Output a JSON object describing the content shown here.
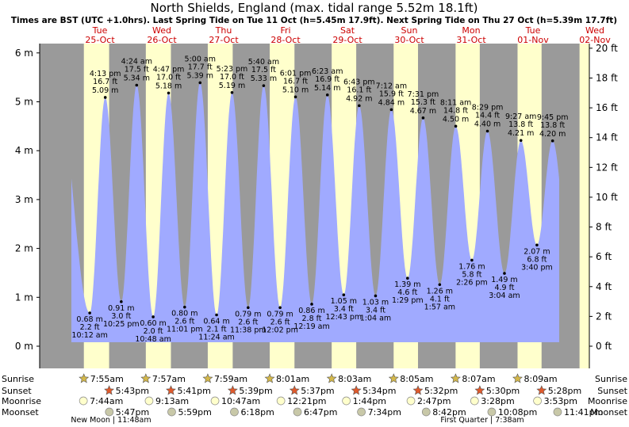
{
  "chart_data": {
    "type": "area",
    "title": "North Shields, England (max. tidal range 5.52m 18.1ft)",
    "subtitle": "Times are BST (UTC +1.0hrs). Last Spring Tide on Tue 11 Oct (h=5.45m 17.9ft). Next Spring Tide on Thu 27 Oct (h=5.39m 17.7ft)",
    "y_left": {
      "ylim": [
        -0.5,
        6.2
      ],
      "ticks": [
        "0 m",
        "1 m",
        "2 m",
        "3 m",
        "4 m",
        "5 m",
        "6 m"
      ]
    },
    "y_right": {
      "ticks": [
        "0 ft",
        "2 ft",
        "4 ft",
        "6 ft",
        "8 ft",
        "10 ft",
        "12 ft",
        "14 ft",
        "16 ft",
        "18 ft",
        "20 ft"
      ]
    },
    "days": [
      {
        "name": "Tue",
        "date": "25-Oct"
      },
      {
        "name": "Wed",
        "date": "26-Oct"
      },
      {
        "name": "Thu",
        "date": "27-Oct"
      },
      {
        "name": "Fri",
        "date": "28-Oct"
      },
      {
        "name": "Sat",
        "date": "29-Oct"
      },
      {
        "name": "Sun",
        "date": "30-Oct"
      },
      {
        "name": "Mon",
        "date": "31-Oct"
      },
      {
        "name": "Tue",
        "date": "01-Nov"
      },
      {
        "name": "Wed",
        "date": "02-Nov"
      }
    ],
    "daylight": [
      {
        "sunrise": "7:55am",
        "sunset": "5:43pm"
      },
      {
        "sunrise": "7:57am",
        "sunset": "5:41pm"
      },
      {
        "sunrise": "7:59am",
        "sunset": "5:39pm"
      },
      {
        "sunrise": "8:01am",
        "sunset": "5:37pm"
      },
      {
        "sunrise": "8:03am",
        "sunset": "5:34pm"
      },
      {
        "sunrise": "8:05am",
        "sunset": "5:32pm"
      },
      {
        "sunrise": "8:07am",
        "sunset": "5:30pm"
      },
      {
        "sunrise": "8:09am",
        "sunset": "5:28pm"
      }
    ],
    "tides": [
      {
        "day": 0,
        "time": "10:12 am",
        "m": 0.68,
        "ft": "2.2 ft",
        "h": "0.68 m",
        "type": "low"
      },
      {
        "day": 0,
        "time": "4:13 pm",
        "m": 5.09,
        "ft": "16.7 ft",
        "h": "5.09 m",
        "type": "high"
      },
      {
        "day": 0,
        "time": "10:25 pm",
        "m": 0.91,
        "ft": "3.0 ft",
        "h": "0.91 m",
        "type": "low"
      },
      {
        "day": 1,
        "time": "4:24 am",
        "m": 5.34,
        "ft": "17.5 ft",
        "h": "5.34 m",
        "type": "high"
      },
      {
        "day": 1,
        "time": "10:48 am",
        "m": 0.6,
        "ft": "2.0 ft",
        "h": "0.60 m",
        "type": "low"
      },
      {
        "day": 1,
        "time": "4:47 pm",
        "m": 5.18,
        "ft": "17.0 ft",
        "h": "5.18 m",
        "type": "high"
      },
      {
        "day": 1,
        "time": "11:01 pm",
        "m": 0.8,
        "ft": "2.6 ft",
        "h": "0.80 m",
        "type": "low"
      },
      {
        "day": 2,
        "time": "5:00 am",
        "m": 5.39,
        "ft": "17.7 ft",
        "h": "5.39 m",
        "type": "high"
      },
      {
        "day": 2,
        "time": "11:24 am",
        "m": 0.64,
        "ft": "2.1 ft",
        "h": "0.64 m",
        "type": "low"
      },
      {
        "day": 2,
        "time": "5:23 pm",
        "m": 5.19,
        "ft": "17.0 ft",
        "h": "5.19 m",
        "type": "high"
      },
      {
        "day": 2,
        "time": "11:38 pm",
        "m": 0.79,
        "ft": "2.6 ft",
        "h": "0.79 m",
        "type": "low"
      },
      {
        "day": 3,
        "time": "5:40 am",
        "m": 5.33,
        "ft": "17.5 ft",
        "h": "5.33 m",
        "type": "high"
      },
      {
        "day": 3,
        "time": "12:02 pm",
        "m": 0.79,
        "ft": "2.6 ft",
        "h": "0.79 m",
        "type": "low"
      },
      {
        "day": 3,
        "time": "6:01 pm",
        "m": 5.1,
        "ft": "16.7 ft",
        "h": "5.10 m",
        "type": "high"
      },
      {
        "day": 4,
        "time": "12:19 am",
        "m": 0.86,
        "ft": "2.8 ft",
        "h": "0.86 m",
        "type": "low"
      },
      {
        "day": 4,
        "time": "6:23 am",
        "m": 5.14,
        "ft": "16.9 ft",
        "h": "5.14 m",
        "type": "high"
      },
      {
        "day": 4,
        "time": "12:43 pm",
        "m": 1.05,
        "ft": "3.4 ft",
        "h": "1.05 m",
        "type": "low"
      },
      {
        "day": 4,
        "time": "6:43 pm",
        "m": 4.92,
        "ft": "16.1 ft",
        "h": "4.92 m",
        "type": "high"
      },
      {
        "day": 5,
        "time": "1:04 am",
        "m": 1.03,
        "ft": "3.4 ft",
        "h": "1.03 m",
        "type": "low"
      },
      {
        "day": 5,
        "time": "7:12 am",
        "m": 4.84,
        "ft": "15.9 ft",
        "h": "4.84 m",
        "type": "high"
      },
      {
        "day": 5,
        "time": "1:29 pm",
        "m": 1.39,
        "ft": "4.6 ft",
        "h": "1.39 m",
        "type": "low"
      },
      {
        "day": 5,
        "time": "7:31 pm",
        "m": 4.67,
        "ft": "15.3 ft",
        "h": "4.67 m",
        "type": "high"
      },
      {
        "day": 6,
        "time": "1:57 am",
        "m": 1.26,
        "ft": "4.1 ft",
        "h": "1.26 m",
        "type": "low"
      },
      {
        "day": 6,
        "time": "8:11 am",
        "m": 4.5,
        "ft": "14.8 ft",
        "h": "4.50 m",
        "type": "high"
      },
      {
        "day": 6,
        "time": "2:26 pm",
        "m": 1.76,
        "ft": "5.8 ft",
        "h": "1.76 m",
        "type": "low"
      },
      {
        "day": 6,
        "time": "8:29 pm",
        "m": 4.4,
        "ft": "14.4 ft",
        "h": "4.40 m",
        "type": "high"
      },
      {
        "day": 7,
        "time": "3:04 am",
        "m": 1.49,
        "ft": "4.9 ft",
        "h": "1.49 m",
        "type": "low"
      },
      {
        "day": 7,
        "time": "9:27 am",
        "m": 4.21,
        "ft": "13.8 ft",
        "h": "4.21 m",
        "type": "high"
      },
      {
        "day": 7,
        "time": "3:40 pm",
        "m": 2.07,
        "ft": "6.8 ft",
        "h": "2.07 m",
        "type": "low"
      },
      {
        "day": 7,
        "time": "9:45 pm",
        "m": 4.2,
        "ft": "13.8 ft",
        "h": "4.20 m",
        "type": "high"
      }
    ],
    "row_labels": {
      "sunrise": "Sunrise",
      "sunset": "Sunset",
      "moonrise": "Moonrise",
      "moonset": "Moonset"
    },
    "moonrise": [
      {
        "day": 0,
        "time": "7:44am"
      },
      {
        "day": 1,
        "time": "9:13am"
      },
      {
        "day": 2,
        "time": "10:47am"
      },
      {
        "day": 3,
        "time": "12:21pm"
      },
      {
        "day": 4,
        "time": "1:44pm"
      },
      {
        "day": 5,
        "time": "2:47pm"
      },
      {
        "day": 6,
        "time": "3:28pm"
      },
      {
        "day": 7,
        "time": "3:53pm"
      }
    ],
    "moonset": [
      {
        "day": 0,
        "time": "5:47pm"
      },
      {
        "day": 1,
        "time": "5:59pm"
      },
      {
        "day": 2,
        "time": "6:18pm"
      },
      {
        "day": 3,
        "time": "6:47pm"
      },
      {
        "day": 4,
        "time": "7:34pm"
      },
      {
        "day": 5,
        "time": "8:42pm"
      },
      {
        "day": 6,
        "time": "10:08pm"
      },
      {
        "day": 7,
        "time": "11:41pm"
      }
    ],
    "moon_phases": [
      {
        "label": "New Moon | 11:48am",
        "day": 0
      },
      {
        "label": "First Quarter | 7:38am",
        "day": 6
      }
    ]
  },
  "colors": {
    "night": "#9a9a9a",
    "day": "#ffffcc",
    "water": "#a0aaff",
    "sun": "#d4b84a",
    "sunset": "#e05a2c",
    "moon_rise": "#ffffcc",
    "moon_set": "#c8c8a8",
    "daytext": "#cc0000"
  }
}
